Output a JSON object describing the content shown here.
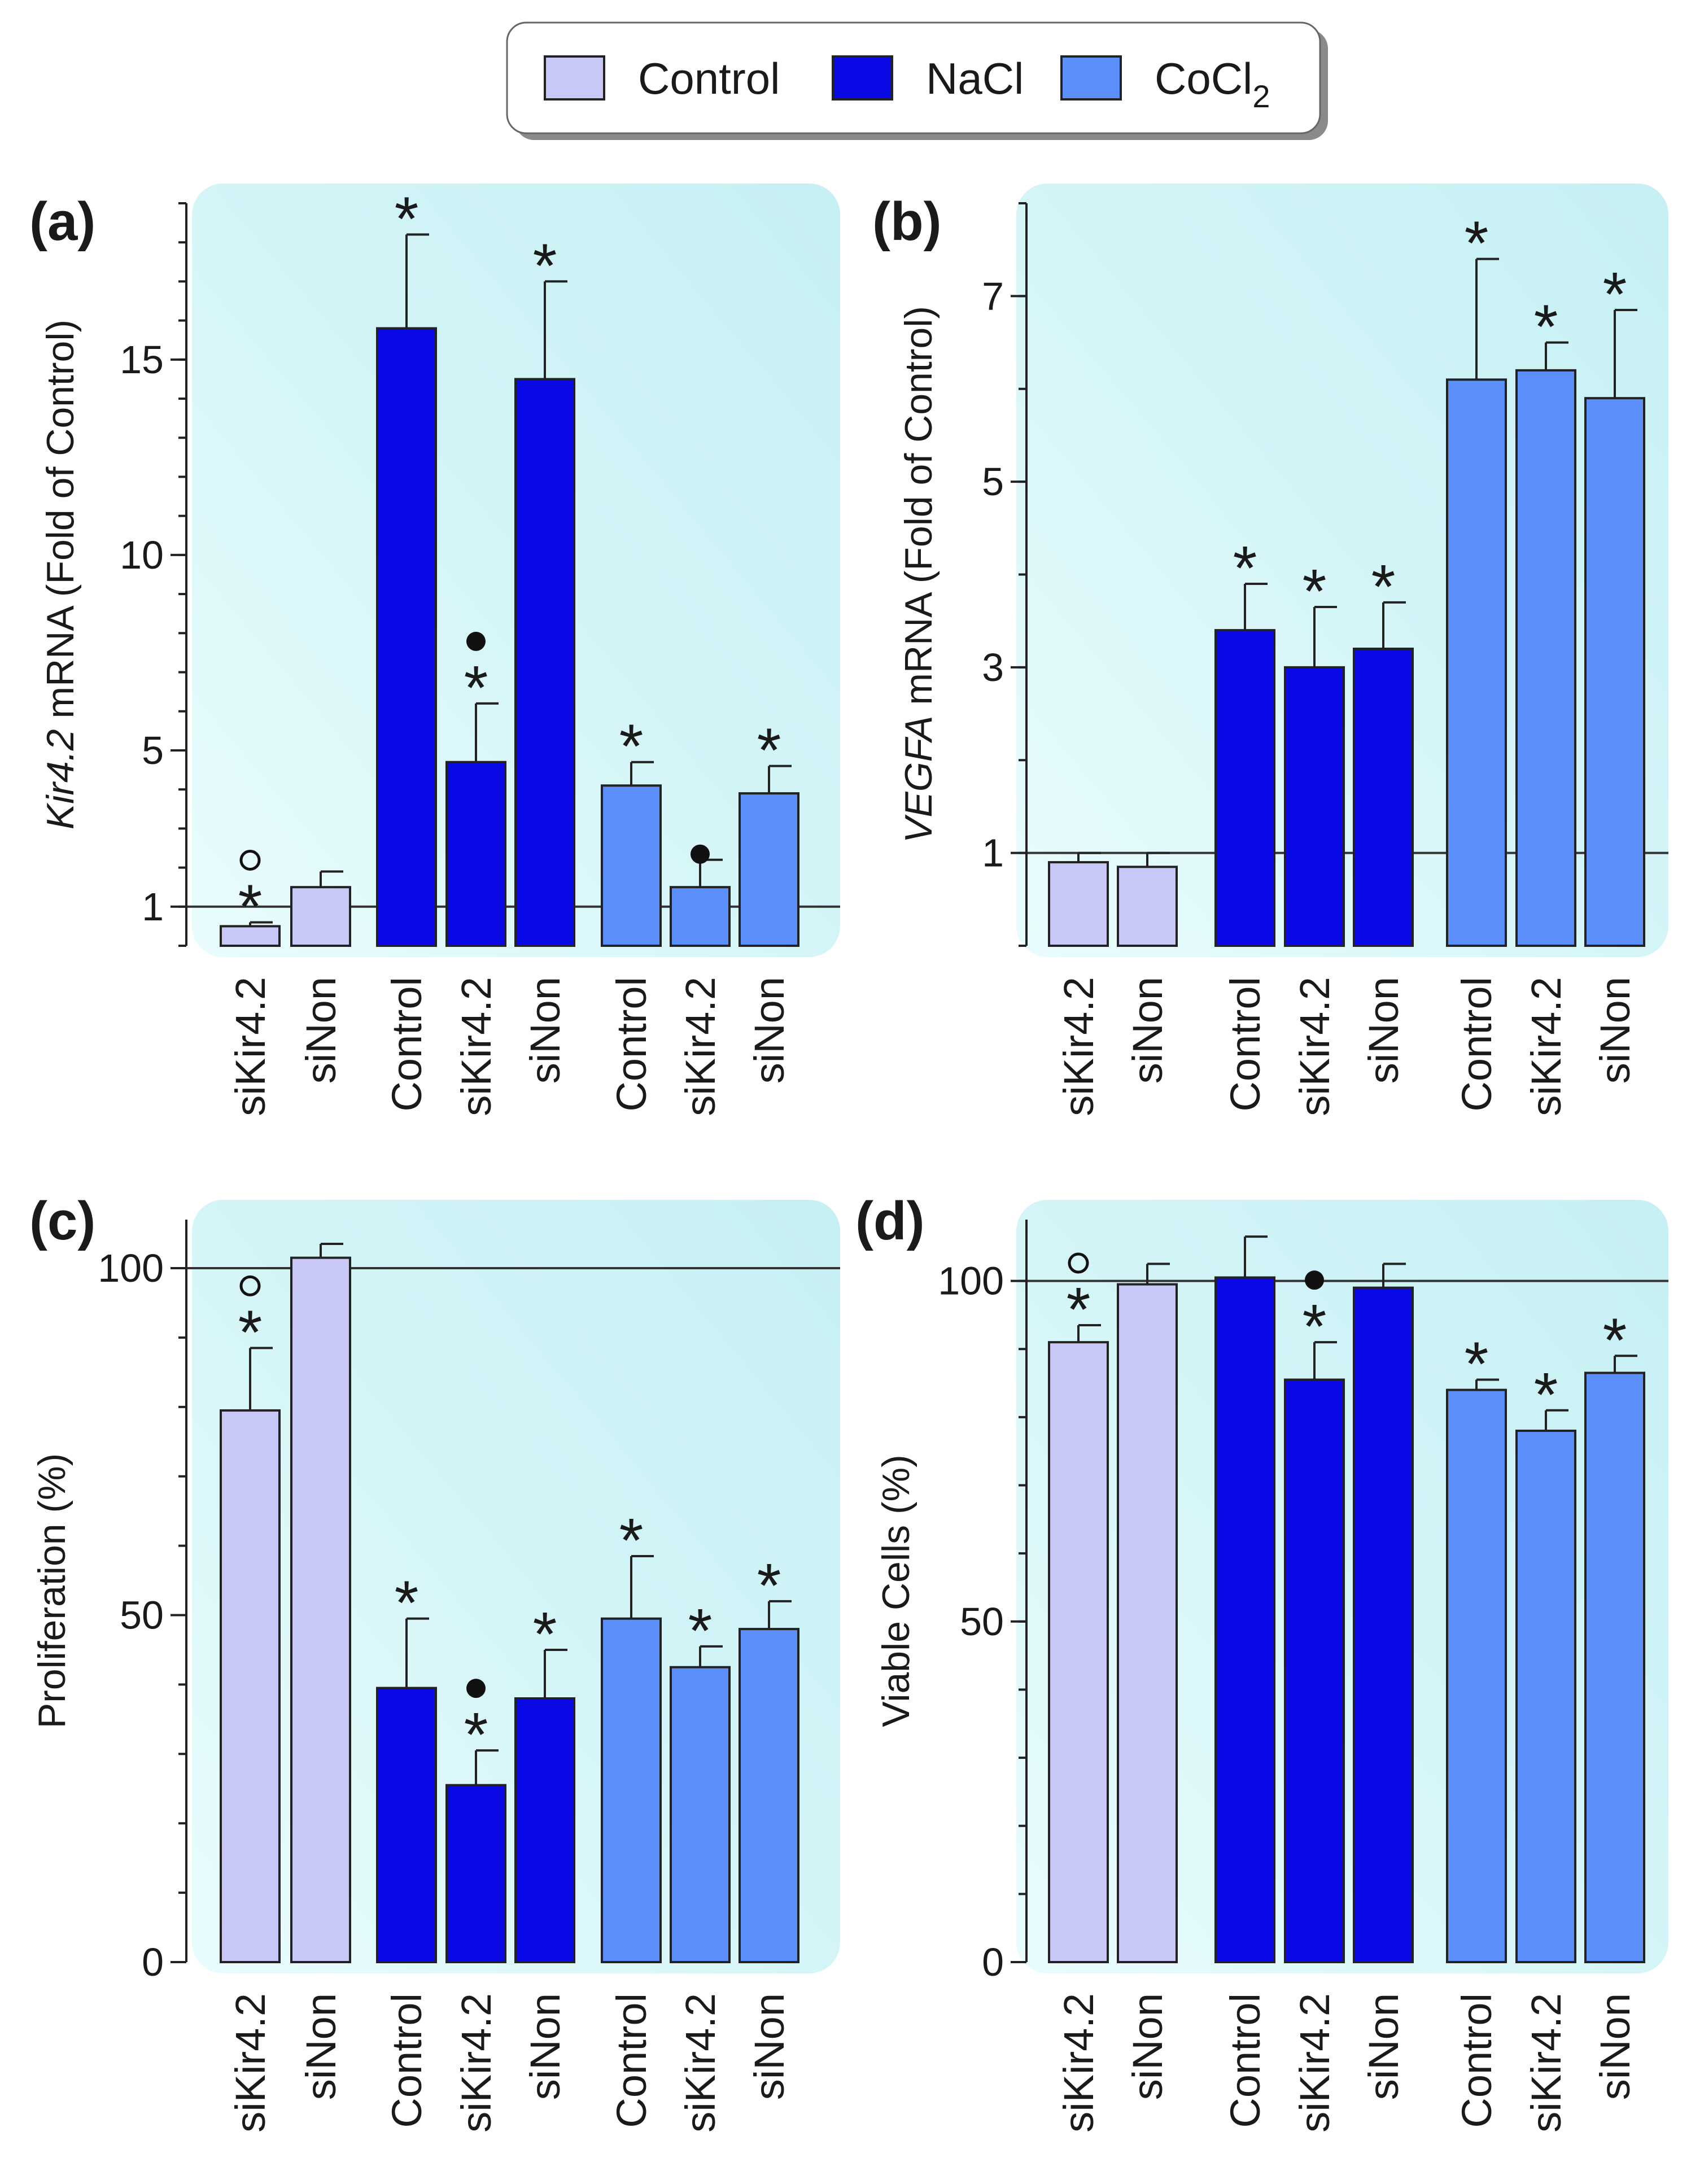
{
  "legend": {
    "items": [
      {
        "label": "Control",
        "sub": "",
        "color": "#c8c8f8"
      },
      {
        "label": "NaCl",
        "sub": "",
        "color": "#0a0ae6"
      },
      {
        "label": "CoCl",
        "sub": "2",
        "color": "#5b8ff9"
      }
    ]
  },
  "chart_data": [
    {
      "id": "a",
      "type": "bar",
      "panel_label": "(a)",
      "ylabel_italic": "Kir4.2",
      "ylabel_rest": " mRNA (Fold of Control)",
      "ylim": [
        0,
        19
      ],
      "yticks": [
        1,
        5,
        10,
        15
      ],
      "reference_line": 1,
      "categories": [
        "siKir4.2",
        "siNon",
        "Control",
        "siKir4.2",
        "siNon",
        "Control",
        "siKir4.2",
        "siNon"
      ],
      "groups": [
        "Control",
        "Control",
        "NaCl",
        "NaCl",
        "NaCl",
        "CoCl2",
        "CoCl2",
        "CoCl2"
      ],
      "values": [
        0.5,
        1.5,
        15.8,
        4.7,
        14.5,
        4.1,
        1.5,
        3.9
      ],
      "errors": [
        0.1,
        0.4,
        2.4,
        1.5,
        2.5,
        0.6,
        0.7,
        0.7
      ],
      "star": [
        true,
        false,
        true,
        true,
        true,
        true,
        false,
        true
      ],
      "marker": [
        "open",
        "",
        "",
        "filled",
        "",
        "",
        "filled",
        ""
      ]
    },
    {
      "id": "b",
      "type": "bar",
      "panel_label": "(b)",
      "ylabel_italic": "VEGFA",
      "ylabel_rest": " mRNA (Fold of Control)",
      "ylim": [
        0,
        8
      ],
      "yticks": [
        1,
        3,
        5,
        7
      ],
      "reference_line": 1,
      "categories": [
        "siKir4.2",
        "siNon",
        "Control",
        "siKir4.2",
        "siNon",
        "Control",
        "siKir4.2",
        "siNon"
      ],
      "groups": [
        "Control",
        "Control",
        "NaCl",
        "NaCl",
        "NaCl",
        "CoCl2",
        "CoCl2",
        "CoCl2"
      ],
      "values": [
        0.9,
        0.85,
        3.4,
        3.0,
        3.2,
        6.1,
        6.2,
        5.9
      ],
      "errors": [
        0.1,
        0.15,
        0.5,
        0.65,
        0.5,
        1.3,
        0.3,
        0.95
      ],
      "star": [
        false,
        false,
        true,
        true,
        true,
        true,
        true,
        true
      ],
      "marker": [
        "",
        "",
        "",
        "",
        "",
        "",
        "",
        ""
      ]
    },
    {
      "id": "c",
      "type": "bar",
      "panel_label": "(c)",
      "ylabel_italic": "",
      "ylabel_rest": "Proliferation (%)",
      "ylim": [
        0,
        107
      ],
      "yticks": [
        0,
        50,
        100
      ],
      "reference_line": 100,
      "categories": [
        "siKir4.2",
        "siNon",
        "Control",
        "siKir4.2",
        "siNon",
        "Control",
        "siKir4.2",
        "siNon"
      ],
      "groups": [
        "Control",
        "Control",
        "NaCl",
        "NaCl",
        "NaCl",
        "CoCl2",
        "CoCl2",
        "CoCl2"
      ],
      "values": [
        79.5,
        101.5,
        39.5,
        25.5,
        38,
        49.5,
        42.5,
        48
      ],
      "errors": [
        9,
        2,
        10,
        5,
        7,
        9,
        3,
        4
      ],
      "star": [
        true,
        false,
        true,
        true,
        true,
        true,
        true,
        true
      ],
      "marker": [
        "open",
        "",
        "",
        "filled",
        "",
        "",
        "",
        ""
      ]
    },
    {
      "id": "d",
      "type": "bar",
      "panel_label": "(d)",
      "ylabel_italic": "",
      "ylabel_rest": "Viable Cells (%)",
      "ylim": [
        0,
        109
      ],
      "yticks": [
        0,
        50,
        100
      ],
      "reference_line": 100,
      "categories": [
        "siKir4.2",
        "siNon",
        "Control",
        "siKir4.2",
        "siNon",
        "Control",
        "siKir4.2",
        "siNon"
      ],
      "groups": [
        "Control",
        "Control",
        "NaCl",
        "NaCl",
        "NaCl",
        "CoCl2",
        "CoCl2",
        "CoCl2"
      ],
      "values": [
        91,
        99.5,
        100.5,
        85.5,
        99,
        84,
        78,
        86.5
      ],
      "errors": [
        2.5,
        3,
        6,
        5.5,
        3.5,
        1.5,
        3,
        2.5
      ],
      "star": [
        true,
        false,
        false,
        true,
        false,
        true,
        true,
        true
      ],
      "marker": [
        "open",
        "",
        "",
        "filled",
        "",
        "",
        "",
        ""
      ]
    }
  ]
}
